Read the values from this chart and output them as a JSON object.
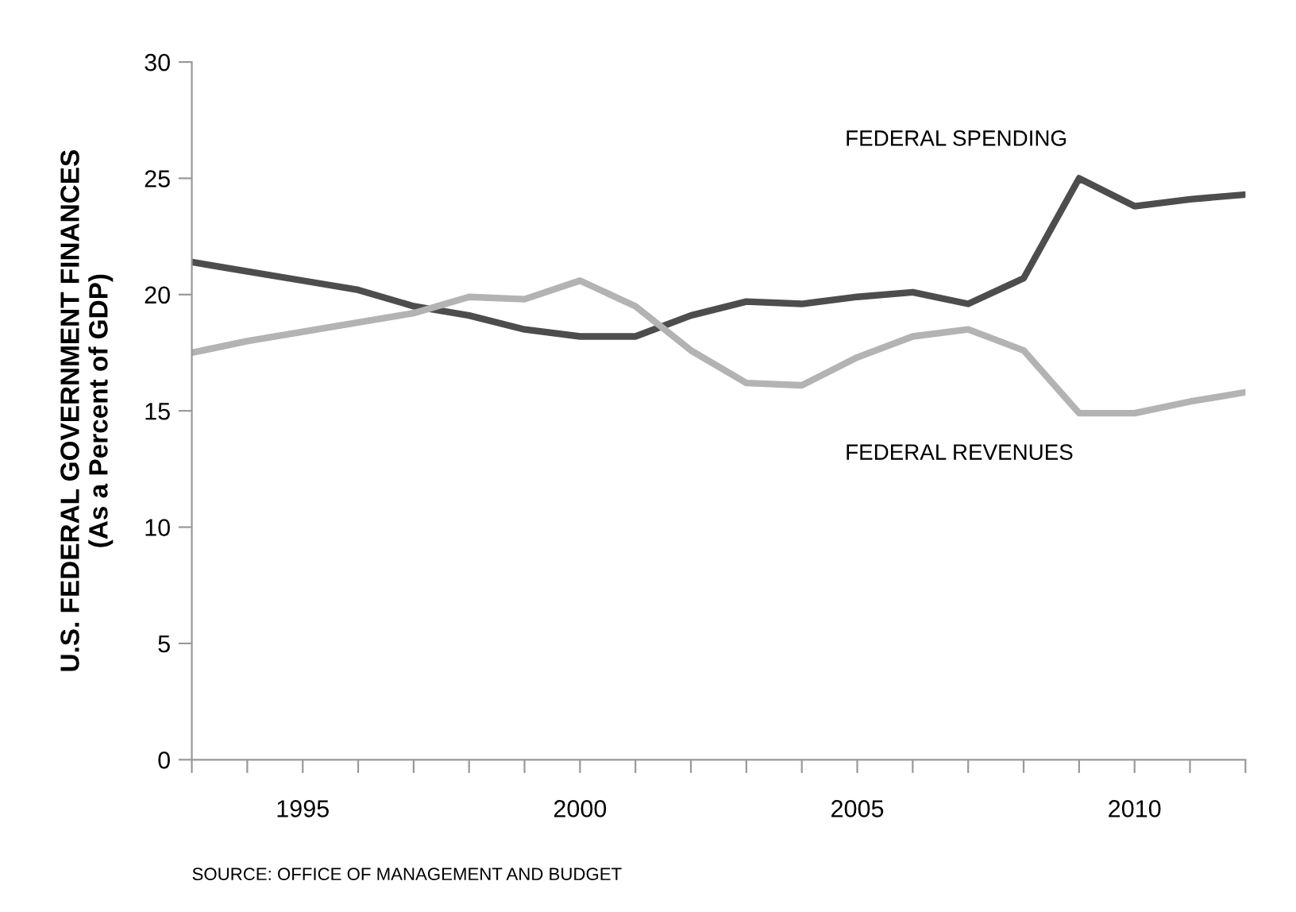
{
  "chart_data": {
    "type": "line",
    "ylabel": "U.S. FEDERAL GOVERNMENT FINANCES\n(As a Percent of GDP)",
    "x": [
      1993,
      1994,
      1995,
      1996,
      1997,
      1998,
      1999,
      2000,
      2001,
      2002,
      2003,
      2004,
      2005,
      2006,
      2007,
      2008,
      2009,
      2010,
      2011,
      2012
    ],
    "series": [
      {
        "name": "FEDERAL SPENDING",
        "color": "#4d4d4d",
        "values": [
          21.4,
          21.0,
          20.6,
          20.2,
          19.5,
          19.1,
          18.5,
          18.2,
          18.2,
          19.1,
          19.7,
          19.6,
          19.9,
          20.1,
          19.6,
          20.7,
          25.0,
          23.8,
          24.1,
          24.3
        ]
      },
      {
        "name": "FEDERAL REVENUES",
        "color": "#b3b3b3",
        "values": [
          17.5,
          18.0,
          18.4,
          18.8,
          19.2,
          19.9,
          19.8,
          20.6,
          19.5,
          17.6,
          16.2,
          16.1,
          17.3,
          18.2,
          18.5,
          17.6,
          14.9,
          14.9,
          15.4,
          15.8
        ]
      }
    ],
    "xlim": [
      1993,
      2012
    ],
    "ylim": [
      0,
      30
    ],
    "xticks": [
      {
        "value": 1993,
        "label": null
      },
      {
        "value": 1994,
        "label": null
      },
      1995,
      {
        "value": 1996,
        "label": null
      },
      {
        "value": 1997,
        "label": null
      },
      {
        "value": 1998,
        "label": null
      },
      {
        "value": 1999,
        "label": null
      },
      2000,
      {
        "value": 2001,
        "label": null
      },
      {
        "value": 2002,
        "label": null
      },
      {
        "value": 2003,
        "label": null
      },
      {
        "value": 2004,
        "label": null
      },
      2005,
      {
        "value": 2006,
        "label": null
      },
      {
        "value": 2007,
        "label": null
      },
      {
        "value": 2008,
        "label": null
      },
      {
        "value": 2009,
        "label": null
      },
      2010,
      {
        "value": 2011,
        "label": null
      },
      {
        "value": 2012,
        "label": null
      }
    ],
    "yticks": [
      0,
      5,
      10,
      15,
      20,
      25,
      30
    ],
    "grid": false,
    "legend": false,
    "marker": "none",
    "line_style": "solid",
    "annotations": [
      "SOURCE: OFFICE OF MANAGEMENT AND BUDGET"
    ]
  }
}
